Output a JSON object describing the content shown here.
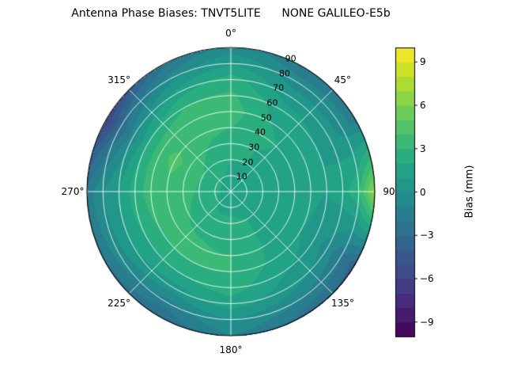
{
  "title": "Antenna Phase Biases: TNVT5LITE      NONE GALILEO-E5b",
  "polar_axis": {
    "angular_labels": [
      "0°",
      "45°",
      "90",
      "135°",
      "180°",
      "225°",
      "270°",
      "315°"
    ],
    "angular_degrees": [
      0,
      45,
      90,
      135,
      180,
      225,
      270,
      315
    ],
    "radial_labels": [
      "10",
      "20",
      "30",
      "40",
      "50",
      "60",
      "70",
      "80",
      "90"
    ],
    "radial_values": [
      10,
      20,
      30,
      40,
      50,
      60,
      70,
      80,
      90
    ],
    "radial_label_angle_deg": 22.5,
    "grid_color": "#ffffff"
  },
  "colorbar": {
    "label": "Bias (mm)",
    "tick_labels": [
      "9",
      "6",
      "3",
      "0",
      "−3",
      "−6",
      "−9"
    ],
    "tick_values": [
      9,
      6,
      3,
      0,
      -3,
      -6,
      -9
    ],
    "top_color": "#fde725",
    "bottom_color": "#440154"
  },
  "chart_data": {
    "type": "heatmap",
    "subtype": "polar_filled_contour",
    "title": "Antenna Phase Biases: TNVT5LITE      NONE GALILEO-E5b",
    "colormap": "viridis",
    "value_label": "Bias (mm)",
    "units": "mm",
    "vmin": -10,
    "vmax": 10,
    "level_step": 1,
    "azimuth_deg": [
      0,
      30,
      60,
      90,
      120,
      150,
      180,
      210,
      240,
      270,
      300,
      330
    ],
    "zenith_deg": [
      0,
      10,
      20,
      30,
      40,
      50,
      60,
      70,
      80,
      90
    ],
    "bias_mm": [
      [
        1.5,
        1.8,
        2.0,
        2.2,
        3.0,
        3.5,
        3.2,
        2.5,
        1.0,
        -0.5
      ],
      [
        1.5,
        1.8,
        2.0,
        2.0,
        2.2,
        2.0,
        1.5,
        0.5,
        -0.5,
        -2.0
      ],
      [
        1.5,
        1.8,
        1.8,
        1.8,
        1.8,
        1.5,
        1.0,
        0.5,
        -0.5,
        -1.5
      ],
      [
        1.5,
        1.8,
        1.8,
        1.8,
        1.5,
        1.2,
        1.0,
        1.5,
        3.0,
        7.0
      ],
      [
        1.5,
        1.8,
        1.8,
        1.5,
        1.2,
        1.0,
        0.5,
        -0.5,
        -2.0,
        -3.5
      ],
      [
        1.5,
        1.8,
        2.0,
        2.0,
        2.0,
        1.8,
        1.2,
        0.5,
        -1.0,
        -2.5
      ],
      [
        1.5,
        1.8,
        2.2,
        2.5,
        3.0,
        3.0,
        2.5,
        1.5,
        0.0,
        -1.0
      ],
      [
        1.5,
        1.8,
        2.2,
        2.8,
        3.2,
        3.0,
        2.0,
        0.5,
        -1.5,
        -3.0
      ],
      [
        1.5,
        2.0,
        2.5,
        3.0,
        3.2,
        3.0,
        2.0,
        1.0,
        -0.5,
        -2.0
      ],
      [
        1.5,
        2.2,
        2.8,
        3.5,
        3.8,
        3.5,
        2.5,
        1.2,
        0.0,
        -1.5
      ],
      [
        1.5,
        2.2,
        3.0,
        3.8,
        4.2,
        3.8,
        2.0,
        -0.5,
        -3.0,
        -6.0
      ],
      [
        1.5,
        2.0,
        2.5,
        3.0,
        3.5,
        3.5,
        3.0,
        1.5,
        -0.5,
        -2.5
      ]
    ],
    "legend_position": "right-colorbar",
    "grid": true
  }
}
